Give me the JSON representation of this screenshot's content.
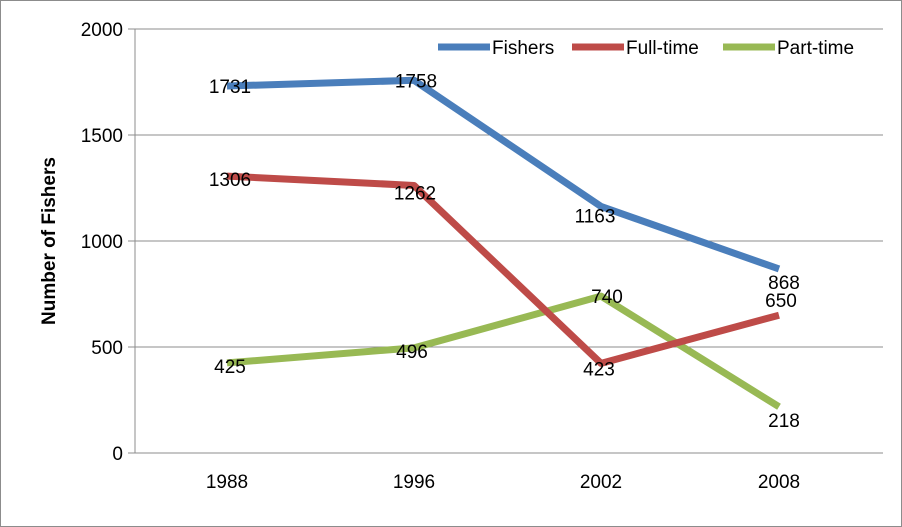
{
  "chart_data": {
    "type": "line",
    "title": "",
    "xlabel": "",
    "ylabel": "Number of Fishers",
    "categories": [
      "1988",
      "1996",
      "2002",
      "2008"
    ],
    "ylim": [
      0,
      2000
    ],
    "yticks": [
      0,
      500,
      1000,
      1500,
      2000
    ],
    "grid": true,
    "legend_position": "top-right",
    "series": [
      {
        "name": "Fishers",
        "color": "#4a7ebb",
        "values": [
          1731,
          1758,
          1163,
          868
        ]
      },
      {
        "name": "Full-time",
        "color": "#be4b48",
        "values": [
          1306,
          1262,
          423,
          650
        ]
      },
      {
        "name": "Part-time",
        "color": "#98b954",
        "values": [
          425,
          496,
          740,
          218
        ]
      }
    ]
  }
}
